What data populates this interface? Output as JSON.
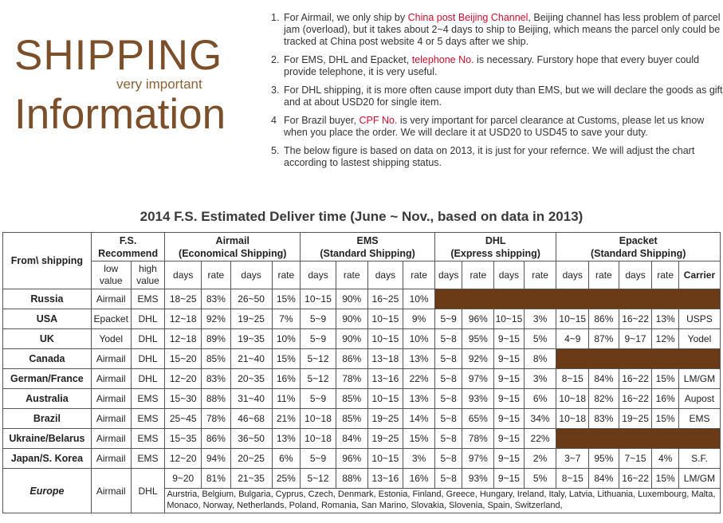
{
  "brand": {
    "title_line1": "SHIPPING",
    "subtitle": "very important",
    "title_line2": "Information"
  },
  "notes": [
    {
      "num": "1.",
      "pre": "For Airmail, we only ship by ",
      "hl": "China post Beijing Channel",
      "post": ", Beijing channel has less problem of parcel  jam (overload), but it  takes  about 2~4 days to ship to Beijing, which means the parcel only could be tracked at China post website 4 or 5 days after we ship."
    },
    {
      "num": "2.",
      "pre": "For EMS, DHL and Epacket, ",
      "hl": "telephone No.",
      "post": " is necessary. Furstory hope that every buyer could provide telephone, it is very useful."
    },
    {
      "num": "3.",
      "pre": "For  DHL shipping,  it  is  more  often  cause import duty than EMS, but we will declare the goods as gift and at about USD20 for single item.",
      "hl": "",
      "post": ""
    },
    {
      "num": "4",
      "pre": "For Brazil buyer, ",
      "hl": "CPF No.",
      "post": " is very important for parcel clearance at Customs, please let us know when you place the order. We will declare it at USD20 to USD45 to save your duty."
    },
    {
      "num": "5.",
      "pre": "The below figure is based on data on 2013, it is just  for your  refernce. We  will adjust the chart according to lastest shipping status.",
      "hl": "",
      "post": ""
    }
  ],
  "table_title": "2014 F.S. Estimated Deliver time (June ~ Nov., based on data in 2013)",
  "headers": {
    "from": "From\\ shipping",
    "fs": [
      "F.S.",
      "Recommend"
    ],
    "airmail": [
      "Airmail",
      "(Economical  Shipping)"
    ],
    "ems": [
      "EMS",
      "(Standard Shipping)"
    ],
    "dhl": [
      "DHL",
      "(Express shipping)"
    ],
    "epacket": [
      "Epacket",
      "(Standard Shipping)"
    ],
    "low": [
      "low",
      "value"
    ],
    "high": [
      "high",
      "value"
    ],
    "days": "days",
    "rate": "rate",
    "carrier": "Carrier"
  },
  "rows": [
    {
      "country": "Russia",
      "low": "Airmail",
      "high": "EMS",
      "air": [
        "18~25",
        "83%",
        "26~50",
        "15%"
      ],
      "ems": [
        "10~15",
        "90%",
        "16~25",
        "10%"
      ],
      "dhl": null,
      "ep": null
    },
    {
      "country": "USA",
      "low": "Epacket",
      "high": "DHL",
      "air": [
        "12~18",
        "92%",
        "19~25",
        "7%"
      ],
      "ems": [
        "5~9",
        "90%",
        "10~15",
        "9%"
      ],
      "dhl": [
        "5~9",
        "96%",
        "10~15",
        "3%"
      ],
      "ep": [
        "10~15",
        "86%",
        "16~22",
        "13%",
        "USPS"
      ]
    },
    {
      "country": "UK",
      "low": "Yodel",
      "high": "DHL",
      "air": [
        "12~18",
        "89%",
        "19~35",
        "10%"
      ],
      "ems": [
        "5~9",
        "90%",
        "10~15",
        "10%"
      ],
      "dhl": [
        "5~8",
        "95%",
        "9~15",
        "5%"
      ],
      "ep": [
        "4~9",
        "87%",
        "9~17",
        "12%",
        "Yodel"
      ]
    },
    {
      "country": "Canada",
      "low": "Airmail",
      "high": "DHL",
      "air": [
        "15~20",
        "85%",
        "21~40",
        "15%"
      ],
      "ems": [
        "5~12",
        "86%",
        "13~18",
        "13%"
      ],
      "dhl": [
        "5~8",
        "92%",
        "9~15",
        "8%"
      ],
      "ep": null
    },
    {
      "country": "German/France",
      "low": "Airmail",
      "high": "DHL",
      "air": [
        "12~20",
        "83%",
        "20~35",
        "16%"
      ],
      "ems": [
        "5~12",
        "78%",
        "13~16",
        "22%"
      ],
      "dhl": [
        "5~8",
        "97%",
        "9~15",
        "3%"
      ],
      "ep": [
        "8~15",
        "84%",
        "16~22",
        "15%",
        "LM/GM"
      ]
    },
    {
      "country": "Australia",
      "low": "Airmail",
      "high": "EMS",
      "air": [
        "15~30",
        "88%",
        "31~40",
        "11%"
      ],
      "ems": [
        "5~9",
        "85%",
        "10~15",
        "13%"
      ],
      "dhl": [
        "5~8",
        "93%",
        "9~15",
        "6%"
      ],
      "ep": [
        "10~18",
        "82%",
        "16~22",
        "16%",
        "Aupost"
      ]
    },
    {
      "country": "Brazil",
      "low": "Airmail",
      "high": "EMS",
      "air": [
        "25~45",
        "78%",
        "46~68",
        "21%"
      ],
      "ems": [
        "10~18",
        "85%",
        "19~25",
        "14%"
      ],
      "dhl": [
        "5~8",
        "65%",
        "9~15",
        "34%"
      ],
      "ep": [
        "10~18",
        "83%",
        "19~25",
        "15%",
        "EMS"
      ]
    },
    {
      "country": "Ukraine/Belarus",
      "low": "Airmail",
      "high": "EMS",
      "air": [
        "15~35",
        "86%",
        "36~50",
        "13%"
      ],
      "ems": [
        "10~18",
        "84%",
        "19~25",
        "15%"
      ],
      "dhl": [
        "5~8",
        "78%",
        "9~15",
        "22%"
      ],
      "ep": null
    },
    {
      "country": "Japan/S. Korea",
      "low": "Airmail",
      "high": "EMS",
      "air": [
        "12~20",
        "94%",
        "20~25",
        "6%"
      ],
      "ems": [
        "5~9",
        "96%",
        "10~15",
        "3%"
      ],
      "dhl": [
        "5~8",
        "97%",
        "9~15",
        "2%"
      ],
      "ep": [
        "3~7",
        "95%",
        "7~15",
        "4%",
        "S.F."
      ]
    }
  ],
  "europe": {
    "country": "Europe",
    "low": "Airmail",
    "high": "DHL",
    "air": [
      "9~20",
      "81%",
      "21~35",
      "25%"
    ],
    "ems": [
      "5~12",
      "88%",
      "13~16",
      "16%"
    ],
    "dhl": [
      "5~8",
      "93%",
      "9~15",
      "5%"
    ],
    "ep": [
      "8~15",
      "84%",
      "16~22",
      "15%",
      "LM/GM"
    ],
    "countries": "Aurstria, Belgium, Bulgaria, Cyprus, Czech, Denmark, Estonia, Finland, Greece, Hungary, Ireland, Italy, Latvia, Lithuania, Luxembourg, Malta, Monaco, Norway, Netherlands, Poland,  Romania, San Marino, Slovakia, Slovenia, Spain, Switzerland,"
  }
}
